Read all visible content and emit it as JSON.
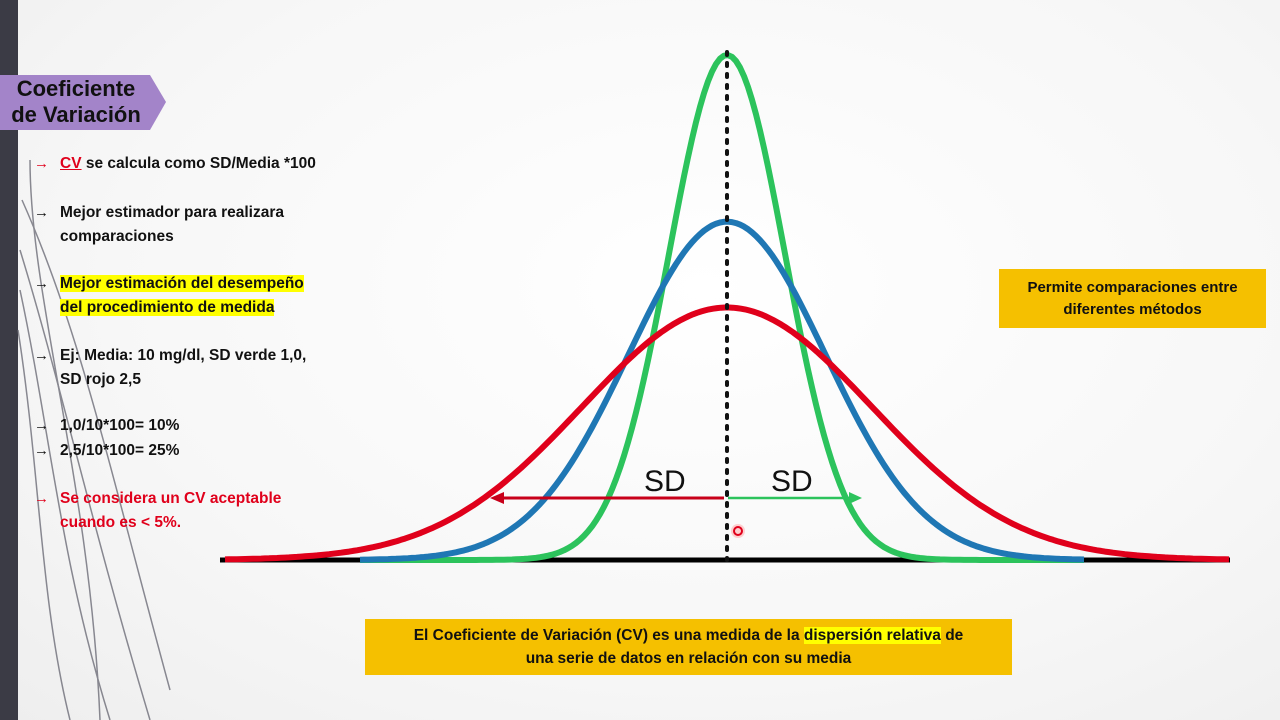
{
  "title": {
    "line1": "Coeficiente",
    "line2": "de Variación"
  },
  "bullets": [
    {
      "arrow": "→",
      "cv_link": "CV",
      "text": " se calcula como SD/Media *100"
    },
    {
      "arrow": "→",
      "line1": "Mejor estimador para realizara",
      "line2": "comparaciones"
    },
    {
      "arrow": "→",
      "line1": "Mejor estimación del desempeño",
      "line2": "del procedimiento de medida"
    },
    {
      "arrow": "→",
      "line1": "Ej: Media: 10 mg/dl, SD verde 1,0,",
      "line2": "SD rojo 2,5"
    },
    {
      "arrow": "→",
      "text": "1,0/10*100= 10%"
    },
    {
      "arrow": "→",
      "text": "2,5/10*100= 25%"
    },
    {
      "arrow": "→",
      "line1": "Se considera un CV aceptable",
      "line2": "cuando es < 5%."
    }
  ],
  "note": {
    "line1": "Permite comparaciones entre",
    "line2": "diferentes métodos"
  },
  "definition": {
    "part1": "El Coeficiente de Variación (CV) es una medida de la ",
    "highlight": "dispersión relativa",
    "part2": " de",
    "line2": "una serie de datos en relación con su media"
  },
  "diagram": {
    "sd_left_label": "SD",
    "sd_right_label": "SD",
    "curves": [
      {
        "name": "green",
        "color": "#2cc35c",
        "sd_rel": 1.0,
        "peak_rel": 1.0
      },
      {
        "name": "blue",
        "color": "#1f77b4",
        "sd_rel": 1.7,
        "peak_rel": 0.67
      },
      {
        "name": "red",
        "color": "#e0001b",
        "sd_rel": 2.5,
        "peak_rel": 0.5
      }
    ],
    "colors": {
      "axis": "#000000",
      "green_arrow": "#2cc35c",
      "red_arrow": "#c8001a",
      "title_tab": "#a384c9",
      "box": "#f5c000"
    }
  }
}
